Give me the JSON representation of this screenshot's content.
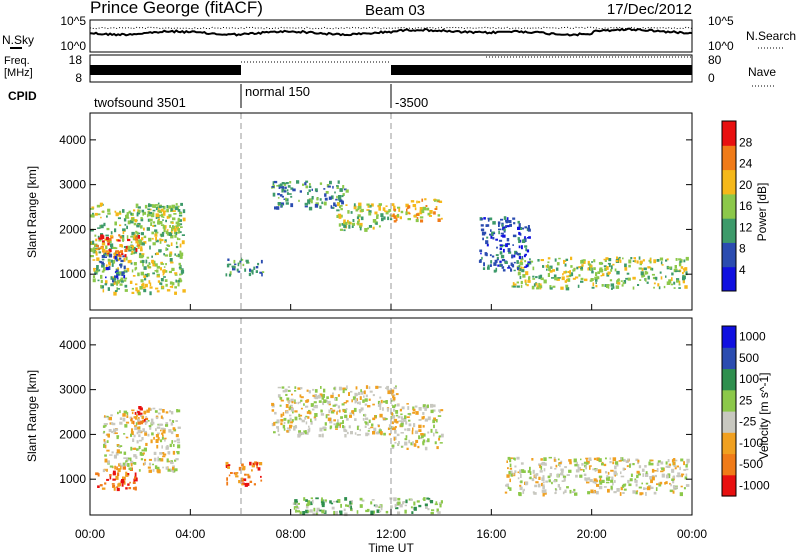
{
  "header": {
    "station": "Prince George (fitACF)",
    "beam": "Beam 03",
    "date": "17/Dec/2012"
  },
  "noise_panel": {
    "left_label": "N.Sky",
    "right_label": "N.Search",
    "left_ticks": [
      "10^5",
      "10^0"
    ],
    "right_ticks": [
      "10^5",
      "10^0"
    ]
  },
  "freq_panel": {
    "left_label": "Freq.",
    "left_unit": "[MHz]",
    "right_label": "Nave",
    "left_ticks": [
      "18",
      "8"
    ],
    "right_ticks": [
      "80",
      "0"
    ],
    "cpid_label": "CPID",
    "cpid_segments": [
      {
        "label": "twofsound 3501",
        "start_hour": 0
      },
      {
        "label": "normal 150",
        "start_hour": 6
      },
      {
        "label": "-3500",
        "start_hour": 12
      }
    ]
  },
  "time_axis": {
    "label": "Time UT",
    "ticks": [
      "00:00",
      "04:00",
      "08:00",
      "12:00",
      "16:00",
      "20:00",
      "00:00"
    ],
    "hours": [
      0,
      4,
      8,
      12,
      16,
      20,
      24
    ]
  },
  "colors": {
    "power": [
      "#1010e0",
      "#2b4cb0",
      "#3d9a6a",
      "#8cc84a",
      "#f5b81a",
      "#f07b18",
      "#e81010"
    ],
    "velocity": [
      "#e81010",
      "#f07b18",
      "#f0a020",
      "#c8c8c0",
      "#8cc84a",
      "#2f8f4e",
      "#2b4cb0",
      "#1010e0"
    ]
  },
  "chart_data": [
    {
      "type": "heatmap",
      "name": "power",
      "ylabel": "Slant Range [km]",
      "yticks": [
        "1000",
        "2000",
        "3000",
        "4000"
      ],
      "ylim": [
        200,
        4600
      ],
      "xlim": [
        0,
        24
      ],
      "colorbar_label": "Power [dB]",
      "colorbar_ticks": [
        "4",
        "8",
        "12",
        "16",
        "20",
        "24",
        "28"
      ],
      "regions": [
        {
          "x0": 0.0,
          "x1": 3.7,
          "r0": 600,
          "r1": 2600,
          "level": 3
        },
        {
          "x0": 0.2,
          "x1": 2.0,
          "r0": 1400,
          "r1": 1900,
          "level": 5
        },
        {
          "x0": 0.3,
          "x1": 1.4,
          "r0": 900,
          "r1": 1500,
          "level": 1
        },
        {
          "x0": 2.3,
          "x1": 3.5,
          "r0": 1900,
          "r1": 2600,
          "level": 3
        },
        {
          "x0": 5.4,
          "x1": 6.9,
          "r0": 1000,
          "r1": 1400,
          "level": 2
        },
        {
          "x0": 7.2,
          "x1": 10.2,
          "r0": 2500,
          "r1": 3100,
          "level": 2
        },
        {
          "x0": 9.8,
          "x1": 12.0,
          "r0": 2000,
          "r1": 2600,
          "level": 3
        },
        {
          "x0": 12.0,
          "x1": 14.0,
          "r0": 2200,
          "r1": 2700,
          "level": 4
        },
        {
          "x0": 16.8,
          "x1": 23.8,
          "r0": 700,
          "r1": 1400,
          "level": 3
        },
        {
          "x0": 15.5,
          "x1": 17.5,
          "r0": 1100,
          "r1": 2300,
          "level": 1
        }
      ]
    },
    {
      "type": "heatmap",
      "name": "velocity",
      "ylabel": "Slant Range [km]",
      "yticks": [
        "1000",
        "2000",
        "3000",
        "4000"
      ],
      "ylim": [
        200,
        4600
      ],
      "xlim": [
        0,
        24
      ],
      "colorbar_label": "Velocity [m s^-1]",
      "colorbar_ticks": [
        "1000",
        "500",
        "100",
        "25",
        "-25",
        "-100",
        "-500",
        "-1000"
      ],
      "regions": [
        {
          "x0": 0.2,
          "x1": 1.8,
          "r0": 800,
          "r1": 1300,
          "level": 1
        },
        {
          "x0": 0.5,
          "x1": 3.5,
          "r0": 1200,
          "r1": 2600,
          "level": 3
        },
        {
          "x0": 1.6,
          "x1": 2.2,
          "r0": 2200,
          "r1": 2700,
          "level": 1
        },
        {
          "x0": 5.4,
          "x1": 6.8,
          "r0": 900,
          "r1": 1400,
          "level": 1
        },
        {
          "x0": 7.2,
          "x1": 12.2,
          "r0": 2000,
          "r1": 3100,
          "level": 3
        },
        {
          "x0": 12.0,
          "x1": 14.0,
          "r0": 1700,
          "r1": 2700,
          "level": 3
        },
        {
          "x0": 16.5,
          "x1": 23.8,
          "r0": 700,
          "r1": 1500,
          "level": 3
        },
        {
          "x0": 8.0,
          "x1": 14.0,
          "r0": 250,
          "r1": 600,
          "level": 4
        }
      ]
    }
  ]
}
